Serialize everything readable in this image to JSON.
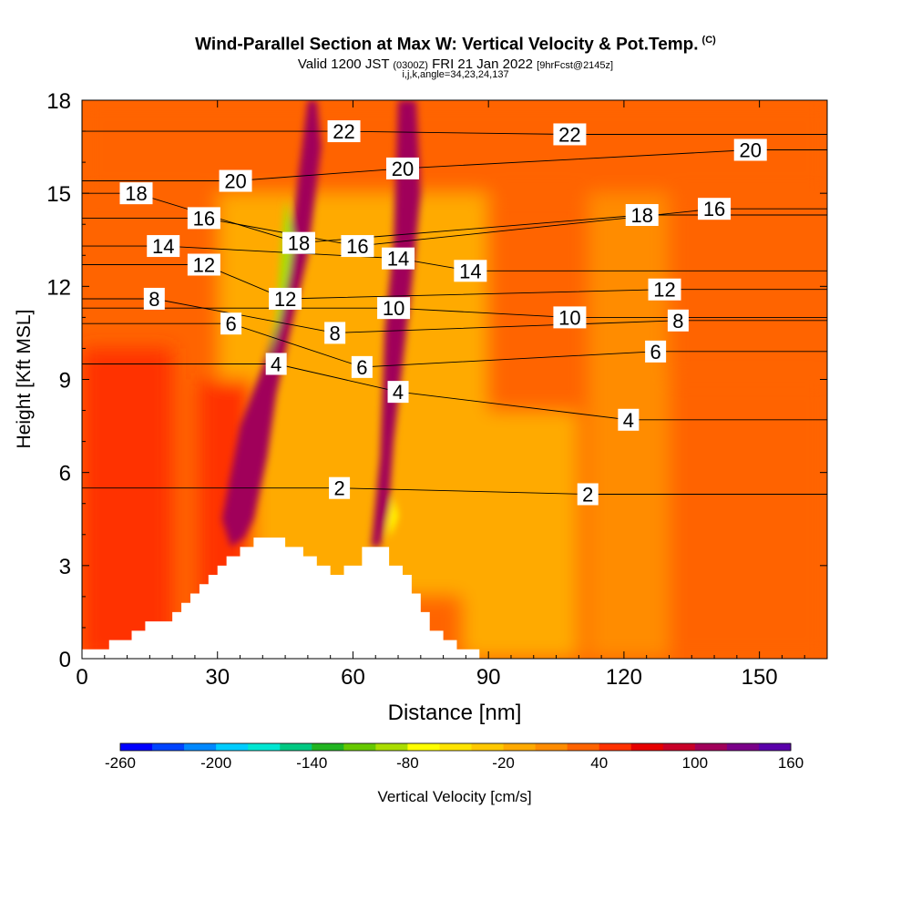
{
  "header": {
    "title": "Wind-Parallel Section at Max W: Vertical Velocity & Pot.Temp.",
    "title_mark": "(C)",
    "valid_prefix": "Valid 1200 JST",
    "valid_utc": "(0300Z)",
    "valid_date": "FRI 21 Jan 2022",
    "forecast": "[9hrFcst@2145z]",
    "grid_info": "i,j,k,angle=34,23,24,137"
  },
  "chart_data": {
    "type": "heatmap",
    "xlabel": "Distance [nm]",
    "ylabel": "Height [Kft MSL]",
    "xlim": [
      0,
      165
    ],
    "ylim": [
      0,
      18
    ],
    "xticks": [
      0,
      30,
      60,
      90,
      120,
      150
    ],
    "yticks": [
      0,
      3,
      6,
      9,
      12,
      15,
      18
    ],
    "grid": false,
    "colorbar": {
      "label": "Vertical Velocity [cm/s]",
      "tick_labels": [
        "-260",
        "-200",
        "-140",
        "-80",
        "-20",
        "40",
        "100",
        "160"
      ],
      "min": -260,
      "max": 160,
      "colors": [
        "#0000ff",
        "#0044ff",
        "#0088ff",
        "#00ccff",
        "#00e6d2",
        "#00c882",
        "#22b422",
        "#66c800",
        "#aadd00",
        "#ffff00",
        "#ffe400",
        "#ffc800",
        "#ffaa00",
        "#ff8c00",
        "#ff6400",
        "#ff3200",
        "#e60000",
        "#c80028",
        "#a0005a",
        "#7a0088",
        "#5a00aa"
      ]
    },
    "terrain_profile": {
      "x": [
        0,
        6,
        6,
        11,
        11,
        14,
        14,
        20,
        20,
        22,
        22,
        24,
        24,
        26,
        26,
        28,
        28,
        30,
        30,
        32,
        32,
        35,
        35,
        38,
        38,
        40,
        40,
        45,
        45,
        49,
        49,
        52,
        52,
        55,
        55,
        58,
        58,
        62,
        62,
        68,
        68,
        71,
        71,
        73,
        73,
        75,
        75,
        77,
        77,
        80,
        80,
        83,
        83,
        88,
        88,
        165
      ],
      "y": [
        0.3,
        0.3,
        0.6,
        0.6,
        0.9,
        0.9,
        1.2,
        1.2,
        1.5,
        1.5,
        1.8,
        1.8,
        2.1,
        2.1,
        2.4,
        2.4,
        2.7,
        2.7,
        3.0,
        3.0,
        3.3,
        3.3,
        3.6,
        3.6,
        3.9,
        3.9,
        3.9,
        3.9,
        3.6,
        3.6,
        3.3,
        3.3,
        3.0,
        3.0,
        2.7,
        2.7,
        3.0,
        3.0,
        3.6,
        3.6,
        3.0,
        3.0,
        2.7,
        2.7,
        2.1,
        2.1,
        1.5,
        1.5,
        0.9,
        0.9,
        0.6,
        0.6,
        0.3,
        0.3,
        0,
        0
      ]
    },
    "shading": [
      {
        "name": "updraft-core",
        "value": 100,
        "x": [
          31,
          35,
          40,
          44,
          47,
          50,
          52,
          53,
          50,
          46,
          43,
          41,
          38,
          36,
          33
        ],
        "y": [
          4.5,
          7.5,
          9.4,
          11.5,
          14.5,
          18,
          18,
          16.5,
          13,
          10.5,
          8.5,
          6.5,
          4.5,
          3.9,
          3.6
        ]
      },
      {
        "name": "updraft-core",
        "value": 100,
        "x": [
          64,
          66,
          67,
          69,
          70,
          72,
          74,
          75,
          73,
          71,
          69,
          68,
          66
        ],
        "y": [
          3.6,
          6.5,
          10.5,
          13.5,
          18,
          18,
          18,
          15,
          12,
          9.5,
          7.0,
          5.0,
          3.6
        ]
      },
      {
        "name": "downdraft-core",
        "value": -100,
        "x": [
          41,
          44,
          46,
          47,
          45,
          44,
          43
        ],
        "y": [
          9.5,
          11.0,
          12.5,
          13.5,
          14.8,
          13.0,
          11.0
        ]
      },
      {
        "name": "downdraft-core",
        "value": -80,
        "x": [
          68,
          69,
          70,
          69,
          68
        ],
        "y": [
          3.9,
          4.2,
          4.6,
          5.2,
          4.4
        ]
      }
    ],
    "contour_labels": [
      {
        "value": "2",
        "x": 57,
        "y": 5.5
      },
      {
        "value": "2",
        "x": 112,
        "y": 5.3
      },
      {
        "value": "4",
        "x": 43,
        "y": 9.5
      },
      {
        "value": "4",
        "x": 70,
        "y": 8.6
      },
      {
        "value": "4",
        "x": 121,
        "y": 7.7
      },
      {
        "value": "6",
        "x": 33,
        "y": 10.8
      },
      {
        "value": "6",
        "x": 62,
        "y": 9.4
      },
      {
        "value": "6",
        "x": 127,
        "y": 9.9
      },
      {
        "value": "8",
        "x": 16,
        "y": 11.6
      },
      {
        "value": "8",
        "x": 56,
        "y": 10.5
      },
      {
        "value": "8",
        "x": 132,
        "y": 10.9
      },
      {
        "value": "10",
        "x": 69,
        "y": 11.3
      },
      {
        "value": "10",
        "x": 108,
        "y": 11.0
      },
      {
        "value": "12",
        "x": 27,
        "y": 12.7
      },
      {
        "value": "12",
        "x": 45,
        "y": 11.6
      },
      {
        "value": "12",
        "x": 129,
        "y": 11.9
      },
      {
        "value": "14",
        "x": 18,
        "y": 13.3
      },
      {
        "value": "14",
        "x": 70,
        "y": 12.9
      },
      {
        "value": "14",
        "x": 86,
        "y": 12.5
      },
      {
        "value": "16",
        "x": 27,
        "y": 14.2
      },
      {
        "value": "16",
        "x": 61,
        "y": 13.3
      },
      {
        "value": "16",
        "x": 140,
        "y": 14.5
      },
      {
        "value": "18",
        "x": 12,
        "y": 15.0
      },
      {
        "value": "18",
        "x": 48,
        "y": 13.4
      },
      {
        "value": "18",
        "x": 124,
        "y": 14.3
      },
      {
        "value": "20",
        "x": 34,
        "y": 15.4
      },
      {
        "value": "20",
        "x": 71,
        "y": 15.8
      },
      {
        "value": "20",
        "x": 148,
        "y": 16.4
      },
      {
        "value": "22",
        "x": 58,
        "y": 17.0
      },
      {
        "value": "22",
        "x": 108,
        "y": 16.9
      }
    ]
  }
}
